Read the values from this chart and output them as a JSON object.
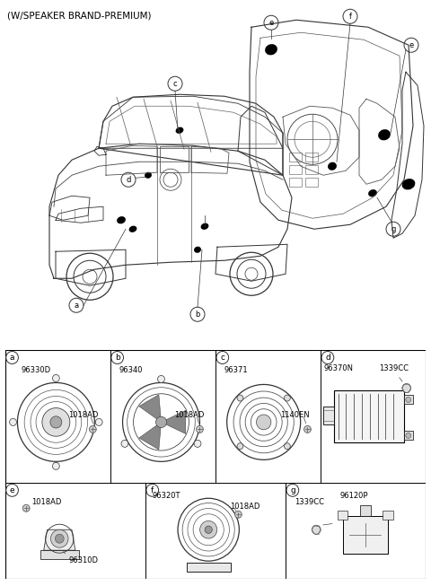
{
  "title": "(W/SPEAKER BRAND-PREMIUM)",
  "bg_color": "#ffffff",
  "text_color": "#000000",
  "line_color": "#000000",
  "cells": [
    {
      "label": "a",
      "code1": "96330D",
      "code2": "1018AD",
      "shape": "speaker_large"
    },
    {
      "label": "b",
      "code1": "96340",
      "code2": "1018AD",
      "shape": "speaker_open"
    },
    {
      "label": "c",
      "code1": "96371",
      "code2": "1140EN",
      "shape": "speaker_ring"
    },
    {
      "label": "d",
      "code1": "96370N",
      "code2": "1339CC",
      "shape": "amplifier"
    },
    {
      "label": "e",
      "code1": "1018AD",
      "code2": "96310D",
      "shape": "tweeter"
    },
    {
      "label": "f",
      "code1": "96320T",
      "code2": "1018AD",
      "shape": "speaker_sub"
    },
    {
      "label": "g",
      "code1": "1339CC",
      "code2": "96120P",
      "shape": "relay"
    }
  ]
}
